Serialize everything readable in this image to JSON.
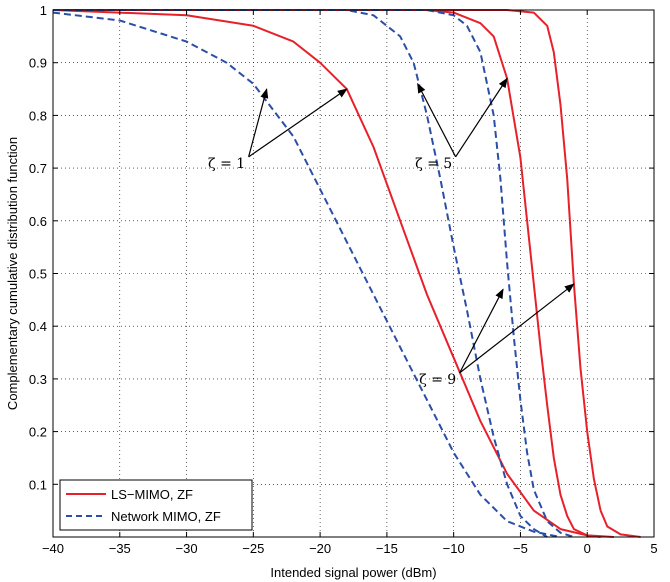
{
  "chart_data": {
    "type": "line",
    "title": "",
    "xlabel": "Intended signal power (dBm)",
    "ylabel": "Complementary cumulative distribution function",
    "xlim": [
      -40,
      5
    ],
    "ylim": [
      0,
      1
    ],
    "xticks": [
      -40,
      -35,
      -30,
      -25,
      -20,
      -15,
      -10,
      -5,
      0,
      5
    ],
    "yticks": [
      0.1,
      0.2,
      0.3,
      0.4,
      0.5,
      0.6,
      0.7,
      0.8,
      0.9,
      1
    ],
    "grid": true,
    "legend_position": "bottom-left",
    "legend": [
      {
        "label": "LS−MIMO, ZF",
        "color": "#e8202a",
        "style": "solid"
      },
      {
        "label": "Network MIMO, ZF",
        "color": "#2b4ea8",
        "style": "dashed"
      }
    ],
    "series": [
      {
        "legend": "LS−MIMO, ZF",
        "group": "ζ = 1",
        "color": "#e8202a",
        "style": "solid",
        "points": [
          [
            -40,
            1
          ],
          [
            -30,
            0.99
          ],
          [
            -25,
            0.97
          ],
          [
            -22,
            0.94
          ],
          [
            -20,
            0.9
          ],
          [
            -18,
            0.85
          ],
          [
            -16,
            0.74
          ],
          [
            -14,
            0.6
          ],
          [
            -12,
            0.46
          ],
          [
            -10,
            0.34
          ],
          [
            -8,
            0.22
          ],
          [
            -6,
            0.12
          ],
          [
            -4,
            0.05
          ],
          [
            -2,
            0.015
          ],
          [
            0,
            0.003
          ],
          [
            2,
            0
          ]
        ]
      },
      {
        "legend": "Network MIMO, ZF",
        "group": "ζ = 1",
        "color": "#2b4ea8",
        "style": "dashed",
        "points": [
          [
            -40,
            0.995
          ],
          [
            -35,
            0.98
          ],
          [
            -30,
            0.94
          ],
          [
            -27,
            0.9
          ],
          [
            -25,
            0.86
          ],
          [
            -22,
            0.76
          ],
          [
            -20,
            0.66
          ],
          [
            -18,
            0.56
          ],
          [
            -16,
            0.46
          ],
          [
            -14,
            0.36
          ],
          [
            -12,
            0.26
          ],
          [
            -10,
            0.16
          ],
          [
            -8,
            0.08
          ],
          [
            -6,
            0.03
          ],
          [
            -4,
            0.01
          ],
          [
            -2,
            0
          ]
        ]
      },
      {
        "legend": "LS−MIMO, ZF",
        "group": "ζ = 5",
        "color": "#e8202a",
        "style": "solid",
        "points": [
          [
            -40,
            1
          ],
          [
            -12,
            1
          ],
          [
            -10,
            0.995
          ],
          [
            -8,
            0.975
          ],
          [
            -7,
            0.95
          ],
          [
            -6,
            0.87
          ],
          [
            -5,
            0.72
          ],
          [
            -4.5,
            0.6
          ],
          [
            -4,
            0.48
          ],
          [
            -3.5,
            0.36
          ],
          [
            -3,
            0.25
          ],
          [
            -2.5,
            0.15
          ],
          [
            -2,
            0.08
          ],
          [
            -1.5,
            0.04
          ],
          [
            -1,
            0.015
          ],
          [
            0,
            0.003
          ],
          [
            1,
            0
          ]
        ]
      },
      {
        "legend": "Network MIMO, ZF",
        "group": "ζ = 5",
        "color": "#2b4ea8",
        "style": "dashed",
        "points": [
          [
            -40,
            1
          ],
          [
            -18,
            1
          ],
          [
            -16,
            0.99
          ],
          [
            -14,
            0.95
          ],
          [
            -13,
            0.9
          ],
          [
            -12,
            0.8
          ],
          [
            -11,
            0.68
          ],
          [
            -10,
            0.55
          ],
          [
            -9,
            0.43
          ],
          [
            -8,
            0.3
          ],
          [
            -7,
            0.19
          ],
          [
            -6,
            0.1
          ],
          [
            -5,
            0.04
          ],
          [
            -4,
            0.015
          ],
          [
            -3,
            0
          ]
        ]
      },
      {
        "legend": "LS−MIMO, ZF",
        "group": "ζ = 9",
        "color": "#e8202a",
        "style": "solid",
        "points": [
          [
            -40,
            1
          ],
          [
            -6,
            1
          ],
          [
            -4,
            0.995
          ],
          [
            -3,
            0.97
          ],
          [
            -2.5,
            0.92
          ],
          [
            -2,
            0.82
          ],
          [
            -1.5,
            0.68
          ],
          [
            -1,
            0.48
          ],
          [
            -0.5,
            0.32
          ],
          [
            0,
            0.2
          ],
          [
            0.5,
            0.11
          ],
          [
            1,
            0.05
          ],
          [
            1.5,
            0.02
          ],
          [
            2.5,
            0.005
          ],
          [
            4,
            0
          ]
        ]
      },
      {
        "legend": "Network MIMO, ZF",
        "group": "ζ = 9",
        "color": "#2b4ea8",
        "style": "dashed",
        "points": [
          [
            -40,
            1
          ],
          [
            -12,
            1
          ],
          [
            -10,
            0.99
          ],
          [
            -9,
            0.97
          ],
          [
            -8,
            0.92
          ],
          [
            -7,
            0.8
          ],
          [
            -6.5,
            0.68
          ],
          [
            -6,
            0.52
          ],
          [
            -5.5,
            0.38
          ],
          [
            -5,
            0.26
          ],
          [
            -4.5,
            0.16
          ],
          [
            -4,
            0.09
          ],
          [
            -3,
            0.03
          ],
          [
            -2,
            0.008
          ],
          [
            -1,
            0
          ]
        ]
      }
    ],
    "annotations": [
      {
        "text": "ζ = 1",
        "x": -27,
        "y": 0.71,
        "arrows_to": [
          [
            -24,
            0.85
          ],
          [
            -18,
            0.85
          ]
        ]
      },
      {
        "text": "ζ = 5",
        "x": -11.5,
        "y": 0.71,
        "arrows_to": [
          [
            -12.7,
            0.86
          ],
          [
            -6,
            0.87
          ]
        ]
      },
      {
        "text": "ζ = 9",
        "x": -11.2,
        "y": 0.3,
        "arrows_to": [
          [
            -6.3,
            0.47
          ],
          [
            -1,
            0.48
          ]
        ]
      }
    ]
  }
}
